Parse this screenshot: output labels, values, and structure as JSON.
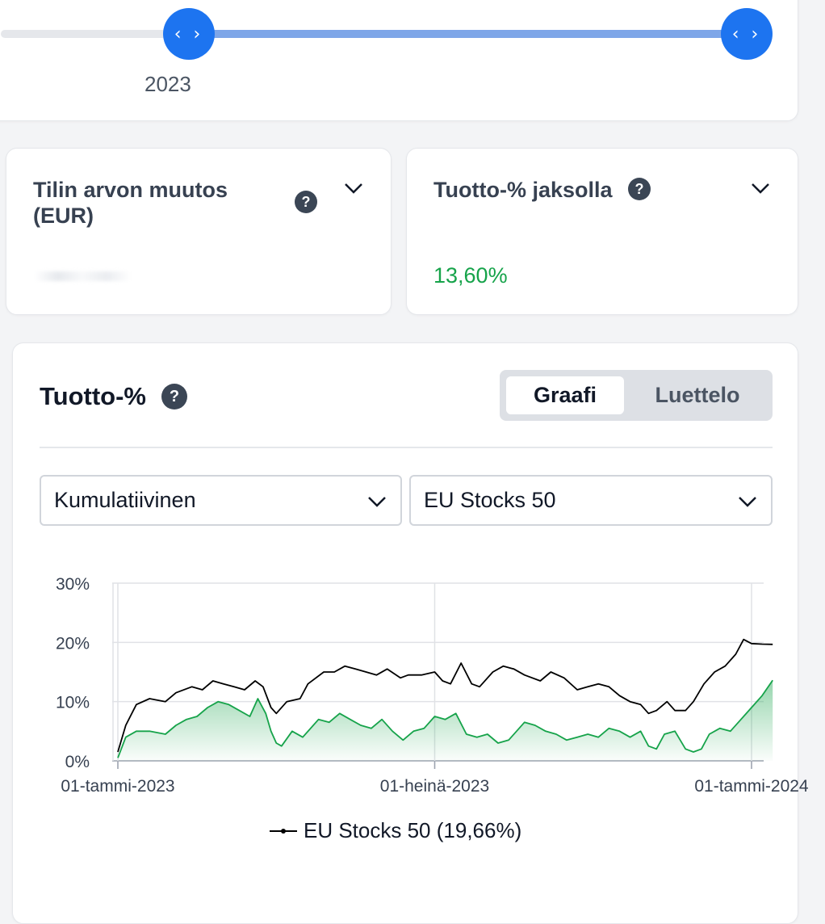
{
  "slider": {
    "year_label": "2023",
    "handle_glyph": "‹ ›"
  },
  "stats": {
    "change": {
      "title": "Tilin arvon muutos (EUR)",
      "help": "?"
    },
    "return": {
      "title": "Tuotto-% jaksolla",
      "help": "?",
      "value": "13,60%"
    }
  },
  "chart_section": {
    "title": "Tuotto-%",
    "help": "?",
    "toggle": {
      "graph_label": "Graafi",
      "list_label": "Luettelo"
    },
    "mode_select": {
      "value": "Kumulatiivinen"
    },
    "benchmark_select": {
      "value": "EU Stocks 50"
    },
    "legend": "EU Stocks 50 (19,66%)"
  },
  "colors": {
    "accent": "#1d74f0",
    "positive": "#16a34a",
    "benchmark_line": "#000000"
  },
  "chart_data": {
    "type": "line",
    "x_tick_labels": [
      "01-tammi-2023",
      "01-heinä-2023",
      "01-tammi-2024"
    ],
    "y_tick_labels": [
      "0%",
      "10%",
      "20%",
      "30%"
    ],
    "ylim": [
      0,
      30
    ],
    "xlim_months": [
      0,
      12
    ],
    "grid": true,
    "legend_position": "bottom",
    "series": [
      {
        "name": "EU Stocks 50 (19,66%)",
        "color": "#000000",
        "points": [
          [
            0.0,
            1.5
          ],
          [
            0.15,
            6
          ],
          [
            0.35,
            9.5
          ],
          [
            0.6,
            10.5
          ],
          [
            0.9,
            10
          ],
          [
            1.1,
            11.5
          ],
          [
            1.4,
            12.5
          ],
          [
            1.6,
            12
          ],
          [
            1.8,
            13.5
          ],
          [
            2.0,
            13
          ],
          [
            2.2,
            12.5
          ],
          [
            2.4,
            12
          ],
          [
            2.6,
            13.5
          ],
          [
            2.75,
            12.5
          ],
          [
            2.9,
            9
          ],
          [
            3.0,
            8
          ],
          [
            3.2,
            10
          ],
          [
            3.45,
            10.5
          ],
          [
            3.6,
            13
          ],
          [
            3.9,
            15
          ],
          [
            4.1,
            15
          ],
          [
            4.3,
            16
          ],
          [
            4.5,
            15.5
          ],
          [
            4.7,
            15
          ],
          [
            4.9,
            14.5
          ],
          [
            5.1,
            15.5
          ],
          [
            5.35,
            14
          ],
          [
            5.5,
            14.5
          ],
          [
            5.75,
            14.5
          ],
          [
            6.0,
            15
          ],
          [
            6.15,
            13.5
          ],
          [
            6.3,
            13
          ],
          [
            6.5,
            16.5
          ],
          [
            6.7,
            13
          ],
          [
            6.85,
            12.5
          ],
          [
            7.1,
            15
          ],
          [
            7.3,
            16
          ],
          [
            7.5,
            15.5
          ],
          [
            7.7,
            14.5
          ],
          [
            8.0,
            13.5
          ],
          [
            8.2,
            15
          ],
          [
            8.45,
            14
          ],
          [
            8.7,
            12
          ],
          [
            8.9,
            12.5
          ],
          [
            9.1,
            13
          ],
          [
            9.3,
            12.5
          ],
          [
            9.5,
            11
          ],
          [
            9.7,
            10
          ],
          [
            9.9,
            9.5
          ],
          [
            10.05,
            8
          ],
          [
            10.2,
            8.5
          ],
          [
            10.4,
            10
          ],
          [
            10.55,
            8.5
          ],
          [
            10.75,
            8.5
          ],
          [
            10.9,
            10
          ],
          [
            11.1,
            13
          ],
          [
            11.3,
            15
          ],
          [
            11.5,
            16
          ],
          [
            11.7,
            18
          ],
          [
            11.85,
            20.5
          ],
          [
            12.0,
            19.8
          ],
          [
            12.2,
            19.7
          ],
          [
            12.4,
            19.66
          ]
        ]
      },
      {
        "name": "",
        "color": "#16a34a",
        "fill": true,
        "points": [
          [
            0.0,
            0.5
          ],
          [
            0.15,
            4
          ],
          [
            0.35,
            5
          ],
          [
            0.6,
            5
          ],
          [
            0.9,
            4.5
          ],
          [
            1.1,
            6
          ],
          [
            1.3,
            7
          ],
          [
            1.5,
            7.5
          ],
          [
            1.7,
            9
          ],
          [
            1.9,
            10
          ],
          [
            2.1,
            9.5
          ],
          [
            2.3,
            8.5
          ],
          [
            2.5,
            7.5
          ],
          [
            2.65,
            10.5
          ],
          [
            2.8,
            8
          ],
          [
            2.9,
            5
          ],
          [
            3.0,
            3
          ],
          [
            3.1,
            2.5
          ],
          [
            3.3,
            5
          ],
          [
            3.5,
            4
          ],
          [
            3.8,
            7
          ],
          [
            4.0,
            6.5
          ],
          [
            4.2,
            8
          ],
          [
            4.4,
            7
          ],
          [
            4.6,
            6
          ],
          [
            4.8,
            5.5
          ],
          [
            5.0,
            7
          ],
          [
            5.2,
            5
          ],
          [
            5.4,
            3.5
          ],
          [
            5.6,
            5
          ],
          [
            5.8,
            5.5
          ],
          [
            6.0,
            7.5
          ],
          [
            6.2,
            7
          ],
          [
            6.4,
            8
          ],
          [
            6.6,
            4.5
          ],
          [
            6.8,
            4
          ],
          [
            7.0,
            4.5
          ],
          [
            7.2,
            3
          ],
          [
            7.4,
            3.5
          ],
          [
            7.7,
            6.5
          ],
          [
            7.9,
            6
          ],
          [
            8.1,
            5
          ],
          [
            8.3,
            4.5
          ],
          [
            8.5,
            3.5
          ],
          [
            8.7,
            4
          ],
          [
            8.9,
            4.5
          ],
          [
            9.1,
            4
          ],
          [
            9.3,
            5.5
          ],
          [
            9.5,
            5
          ],
          [
            9.7,
            4
          ],
          [
            9.9,
            5
          ],
          [
            10.05,
            2.5
          ],
          [
            10.2,
            2
          ],
          [
            10.35,
            4.5
          ],
          [
            10.55,
            5
          ],
          [
            10.75,
            2
          ],
          [
            10.9,
            1.5
          ],
          [
            11.05,
            2
          ],
          [
            11.2,
            4.5
          ],
          [
            11.4,
            5.5
          ],
          [
            11.6,
            5
          ],
          [
            11.8,
            7
          ],
          [
            12.0,
            9
          ],
          [
            12.2,
            11
          ],
          [
            12.4,
            13.6
          ]
        ]
      }
    ]
  }
}
